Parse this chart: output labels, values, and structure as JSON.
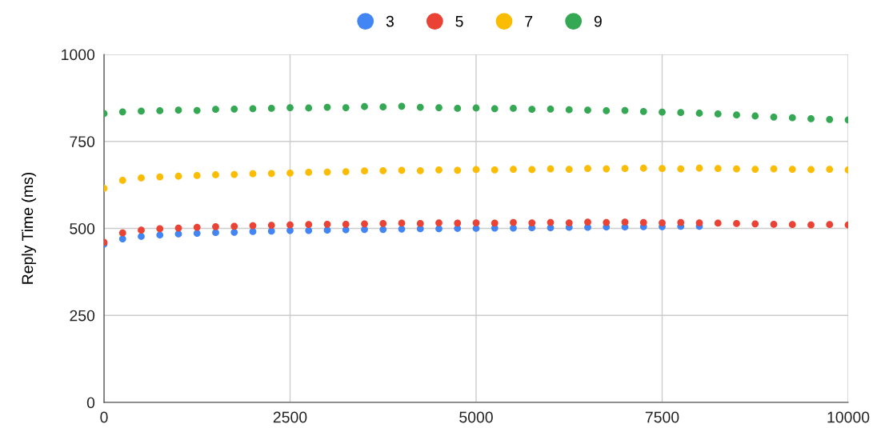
{
  "chart_data": {
    "type": "scatter",
    "ylabel": "Reply Time (ms)",
    "xlim": [
      0,
      10000
    ],
    "xticks": [
      0,
      2500,
      5000,
      7500,
      10000
    ],
    "ylim": [
      0,
      1000
    ],
    "yticks": [
      0,
      250,
      500,
      750,
      1000
    ],
    "grid": true,
    "legend": "top",
    "marker": "circle",
    "series": [
      {
        "name": "3",
        "color": "#4285f4",
        "x": [
          0,
          250,
          500,
          750,
          1000,
          1250,
          1500,
          1750,
          2000,
          2250,
          2500,
          2750,
          3000,
          3250,
          3500,
          3750,
          4000,
          4250,
          4500,
          4750,
          5000,
          5250,
          5500,
          5750,
          6000,
          6250,
          6500,
          6750,
          7000,
          7250,
          7500,
          7750,
          8000
        ],
        "values": [
          455,
          470,
          477,
          481,
          484,
          486,
          488,
          489,
          491,
          492,
          494,
          494,
          495,
          496,
          497,
          497,
          498,
          499,
          499,
          500,
          500,
          501,
          501,
          502,
          502,
          503,
          503,
          504,
          504,
          505,
          505,
          506,
          506
        ]
      },
      {
        "name": "5",
        "color": "#ea4335",
        "x": [
          0,
          250,
          500,
          750,
          1000,
          1250,
          1500,
          1750,
          2000,
          2250,
          2500,
          2750,
          3000,
          3250,
          3500,
          3750,
          4000,
          4250,
          4500,
          4750,
          5000,
          5250,
          5500,
          5750,
          6000,
          6250,
          6500,
          6750,
          7000,
          7250,
          7500,
          7750,
          8000,
          8250,
          8500,
          8750,
          9000,
          9250,
          9500,
          9750,
          10000
        ],
        "values": [
          460,
          487,
          495,
          499,
          501,
          503,
          505,
          506,
          508,
          509,
          510,
          511,
          512,
          512,
          513,
          514,
          515,
          514,
          516,
          515,
          516,
          515,
          517,
          516,
          517,
          516,
          518,
          517,
          518,
          517,
          516,
          517,
          516,
          515,
          514,
          513,
          512,
          511,
          510,
          511,
          510
        ]
      },
      {
        "name": "7",
        "color": "#fbbc04",
        "x": [
          0,
          250,
          500,
          750,
          1000,
          1250,
          1500,
          1750,
          2000,
          2250,
          2500,
          2750,
          3000,
          3250,
          3500,
          3750,
          4000,
          4250,
          4500,
          4750,
          5000,
          5250,
          5500,
          5750,
          6000,
          6250,
          6500,
          6750,
          7000,
          7250,
          7500,
          7750,
          8000,
          8250,
          8500,
          8750,
          9000,
          9250,
          9500,
          9750,
          10000
        ],
        "values": [
          615,
          638,
          645,
          648,
          650,
          652,
          654,
          655,
          657,
          658,
          659,
          661,
          662,
          663,
          665,
          666,
          667,
          666,
          668,
          667,
          669,
          668,
          670,
          669,
          671,
          670,
          672,
          671,
          672,
          673,
          672,
          671,
          673,
          672,
          671,
          670,
          671,
          670,
          669,
          670,
          668
        ]
      },
      {
        "name": "9",
        "color": "#34a853",
        "x": [
          0,
          250,
          500,
          750,
          1000,
          1250,
          1500,
          1750,
          2000,
          2250,
          2500,
          2750,
          3000,
          3250,
          3500,
          3750,
          4000,
          4250,
          4500,
          4750,
          5000,
          5250,
          5500,
          5750,
          6000,
          6250,
          6500,
          6750,
          7000,
          7250,
          7500,
          7750,
          8000,
          8250,
          8500,
          8750,
          9000,
          9250,
          9500,
          9750,
          10000
        ],
        "values": [
          830,
          835,
          837,
          838,
          840,
          839,
          842,
          843,
          844,
          845,
          847,
          846,
          848,
          847,
          850,
          849,
          851,
          848,
          847,
          845,
          846,
          844,
          845,
          842,
          843,
          841,
          840,
          838,
          839,
          836,
          834,
          833,
          831,
          829,
          826,
          823,
          820,
          818,
          815,
          813,
          812
        ]
      }
    ]
  }
}
